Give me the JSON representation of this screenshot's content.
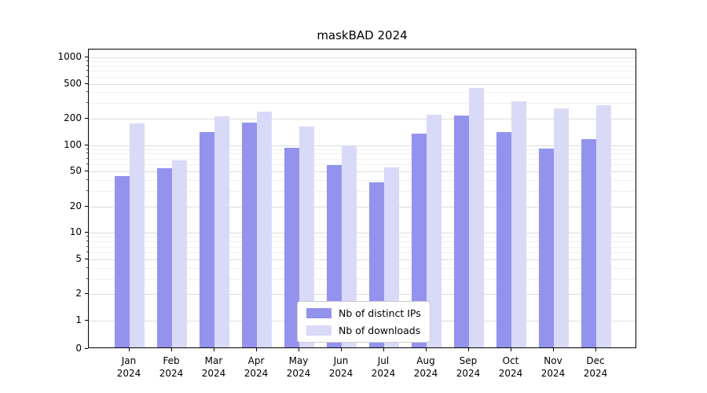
{
  "chart_data": {
    "type": "bar",
    "title": "maskBAD 2024",
    "categories": [
      "Jan",
      "Feb",
      "Mar",
      "Apr",
      "May",
      "Jun",
      "Jul",
      "Aug",
      "Sep",
      "Oct",
      "Nov",
      "Dec"
    ],
    "year": "2024",
    "series": [
      {
        "name": "Nb of distinct IPs",
        "color": "#9393ee",
        "values": [
          43,
          52,
          135,
          175,
          90,
          57,
          36,
          130,
          210,
          135,
          88,
          113
        ]
      },
      {
        "name": "Nb of downloads",
        "color": "#d9d9f8",
        "values": [
          170,
          65,
          205,
          230,
          155,
          95,
          53,
          215,
          430,
          300,
          250,
          270
        ]
      }
    ],
    "yscale": "symlog",
    "yticks": [
      0,
      1,
      2,
      5,
      10,
      20,
      50,
      100,
      200,
      500,
      1000
    ],
    "minor_ticks": [
      3,
      4,
      6,
      7,
      8,
      9,
      30,
      40,
      60,
      70,
      80,
      90,
      300,
      400,
      600,
      700,
      800,
      900
    ],
    "ylim": [
      0,
      1000
    ],
    "grid": true,
    "legend_position": "lower center"
  }
}
